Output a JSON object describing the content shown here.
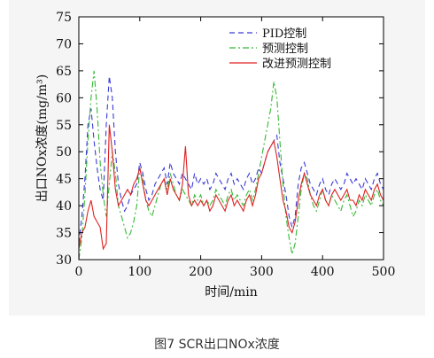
{
  "figure": {
    "caption": "图7 SCR出口NOx浓度"
  },
  "chart_data": {
    "type": "line",
    "xlabel": "时间/min",
    "ylabel": "出口NOx浓度(mg/m³)",
    "xlim": [
      0,
      500
    ],
    "ylim": [
      30,
      75
    ],
    "xticks": [
      0,
      100,
      200,
      300,
      400,
      500
    ],
    "yticks": [
      30,
      35,
      40,
      45,
      50,
      55,
      60,
      65,
      70,
      75
    ],
    "grid": false,
    "legend": "top-right",
    "series": [
      {
        "name": "PID控制",
        "color": "#3b3bd9",
        "style": "dashed",
        "x": [
          0,
          5,
          10,
          15,
          20,
          25,
          30,
          35,
          40,
          45,
          50,
          55,
          60,
          65,
          70,
          75,
          80,
          85,
          90,
          95,
          100,
          105,
          110,
          115,
          120,
          125,
          130,
          135,
          140,
          145,
          150,
          155,
          160,
          165,
          170,
          175,
          180,
          185,
          190,
          195,
          200,
          205,
          210,
          215,
          220,
          225,
          230,
          235,
          240,
          245,
          250,
          255,
          260,
          265,
          270,
          275,
          280,
          285,
          290,
          295,
          300,
          305,
          310,
          315,
          320,
          325,
          330,
          335,
          340,
          345,
          350,
          355,
          360,
          365,
          370,
          375,
          380,
          385,
          390,
          395,
          400,
          405,
          410,
          415,
          420,
          425,
          430,
          435,
          440,
          445,
          450,
          455,
          460,
          465,
          470,
          475,
          480,
          485,
          490,
          495,
          500
        ],
        "y": [
          33,
          38,
          45,
          55,
          58,
          52,
          47,
          43,
          41,
          55,
          64,
          60,
          50,
          44,
          41,
          39,
          40,
          42,
          43,
          44,
          48,
          46,
          43,
          41,
          42,
          44,
          45,
          46,
          47,
          44,
          48,
          46,
          45,
          44,
          46,
          45,
          44,
          43,
          46,
          44,
          45,
          44,
          45,
          43,
          44,
          46,
          45,
          44,
          43,
          45,
          46,
          44,
          45,
          44,
          43,
          45,
          46,
          44,
          45,
          47,
          46,
          48,
          50,
          51,
          52,
          53,
          48,
          45,
          42,
          38,
          36,
          38,
          44,
          47,
          48,
          46,
          44,
          43,
          42,
          44,
          45,
          43,
          42,
          44,
          45,
          44,
          43,
          44,
          46,
          45,
          44,
          45,
          44,
          43,
          45,
          44,
          43,
          45,
          46,
          44,
          43
        ]
      },
      {
        "name": "预测控制",
        "color": "#33bb33",
        "style": "dashdot",
        "x": [
          0,
          5,
          10,
          15,
          20,
          25,
          30,
          35,
          40,
          45,
          50,
          55,
          60,
          65,
          70,
          75,
          80,
          85,
          90,
          95,
          100,
          105,
          110,
          115,
          120,
          125,
          130,
          135,
          140,
          145,
          150,
          155,
          160,
          165,
          170,
          175,
          180,
          185,
          190,
          195,
          200,
          205,
          210,
          215,
          220,
          225,
          230,
          235,
          240,
          245,
          250,
          255,
          260,
          265,
          270,
          275,
          280,
          285,
          290,
          295,
          300,
          305,
          310,
          315,
          320,
          325,
          330,
          335,
          340,
          345,
          350,
          355,
          360,
          365,
          370,
          375,
          380,
          385,
          390,
          395,
          400,
          405,
          410,
          415,
          420,
          425,
          430,
          435,
          440,
          445,
          450,
          455,
          460,
          465,
          470,
          475,
          480,
          485,
          490,
          495,
          500
        ],
        "y": [
          30,
          34,
          42,
          52,
          60,
          65,
          58,
          48,
          42,
          38,
          44,
          50,
          46,
          40,
          38,
          36,
          34,
          35,
          37,
          40,
          47,
          45,
          41,
          39,
          38,
          40,
          42,
          44,
          45,
          43,
          46,
          44,
          42,
          41,
          43,
          42,
          41,
          40,
          42,
          41,
          42,
          40,
          41,
          40,
          41,
          43,
          42,
          41,
          40,
          42,
          43,
          41,
          42,
          41,
          40,
          42,
          43,
          41,
          43,
          46,
          49,
          52,
          55,
          58,
          63,
          60,
          52,
          44,
          38,
          34,
          31,
          33,
          38,
          43,
          46,
          45,
          42,
          40,
          39,
          41,
          43,
          41,
          40,
          42,
          41,
          40,
          39,
          41,
          42,
          40,
          38,
          39,
          41,
          40,
          42,
          41,
          40,
          42,
          43,
          41,
          40
        ]
      },
      {
        "name": "改进预测控制",
        "color": "#e02020",
        "style": "solid",
        "x": [
          0,
          5,
          10,
          15,
          20,
          25,
          30,
          35,
          40,
          45,
          50,
          55,
          60,
          65,
          70,
          75,
          80,
          85,
          90,
          95,
          100,
          105,
          110,
          115,
          120,
          125,
          130,
          135,
          140,
          145,
          150,
          155,
          160,
          165,
          170,
          175,
          180,
          185,
          190,
          195,
          200,
          205,
          210,
          215,
          220,
          225,
          230,
          235,
          240,
          245,
          250,
          255,
          260,
          265,
          270,
          275,
          280,
          285,
          290,
          295,
          300,
          305,
          310,
          315,
          320,
          325,
          330,
          335,
          340,
          345,
          350,
          355,
          360,
          365,
          370,
          375,
          380,
          385,
          390,
          395,
          400,
          405,
          410,
          415,
          420,
          425,
          430,
          435,
          440,
          445,
          450,
          455,
          460,
          465,
          470,
          475,
          480,
          485,
          490,
          495,
          500
        ],
        "y": [
          32,
          35,
          36,
          39,
          41,
          38,
          37,
          36,
          32,
          33,
          55,
          50,
          43,
          40,
          41,
          42,
          43,
          42,
          44,
          45,
          47,
          44,
          41,
          40,
          41,
          42,
          43,
          44,
          45,
          42,
          45,
          43,
          42,
          41,
          44,
          51,
          42,
          40,
          41,
          40,
          41,
          40,
          41,
          39,
          40,
          42,
          41,
          40,
          39,
          41,
          42,
          40,
          41,
          40,
          39,
          41,
          42,
          40,
          42,
          45,
          46,
          48,
          50,
          51,
          52,
          49,
          45,
          41,
          39,
          36,
          35,
          37,
          41,
          44,
          46,
          44,
          42,
          41,
          40,
          42,
          43,
          41,
          40,
          42,
          43,
          42,
          41,
          42,
          43,
          41,
          41,
          40,
          42,
          41,
          43,
          42,
          41,
          43,
          44,
          42,
          41
        ]
      }
    ]
  }
}
